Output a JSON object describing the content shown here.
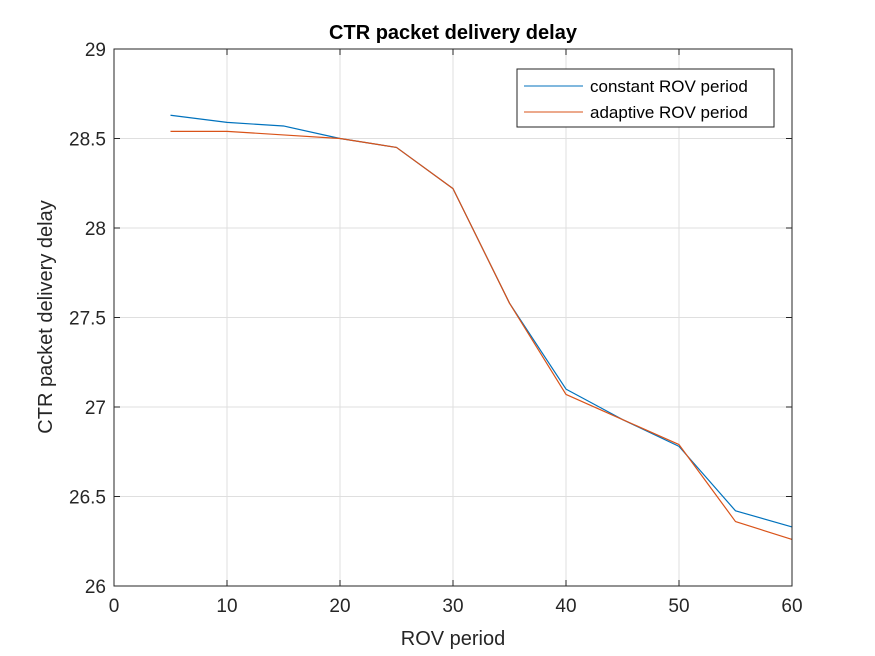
{
  "chart_data": {
    "type": "line",
    "title": "CTR packet delivery delay",
    "xlabel": "ROV period",
    "ylabel": "CTR packet delivery delay",
    "xlim": [
      0,
      60
    ],
    "ylim": [
      26,
      29
    ],
    "xticks": [
      0,
      10,
      20,
      30,
      40,
      50,
      60
    ],
    "yticks": [
      26,
      26.5,
      27,
      27.5,
      28,
      28.5,
      29
    ],
    "xtick_labels": [
      "0",
      "10",
      "20",
      "30",
      "40",
      "50",
      "60"
    ],
    "ytick_labels": [
      "26",
      "26.5",
      "27",
      "27.5",
      "28",
      "28.5",
      "29"
    ],
    "grid": true,
    "legend_position": "top-right",
    "x": [
      5,
      10,
      15,
      20,
      25,
      30,
      35,
      40,
      45,
      50,
      55,
      60
    ],
    "series": [
      {
        "name": "constant ROV period",
        "color": "#0072BD",
        "values": [
          28.63,
          28.59,
          28.57,
          28.5,
          28.45,
          28.22,
          27.58,
          27.1,
          26.93,
          26.78,
          26.42,
          26.33
        ]
      },
      {
        "name": "adaptive ROV period",
        "color": "#D95319",
        "values": [
          28.54,
          28.54,
          28.52,
          28.5,
          28.45,
          28.22,
          27.58,
          27.07,
          26.93,
          26.79,
          26.36,
          26.26
        ]
      }
    ]
  }
}
